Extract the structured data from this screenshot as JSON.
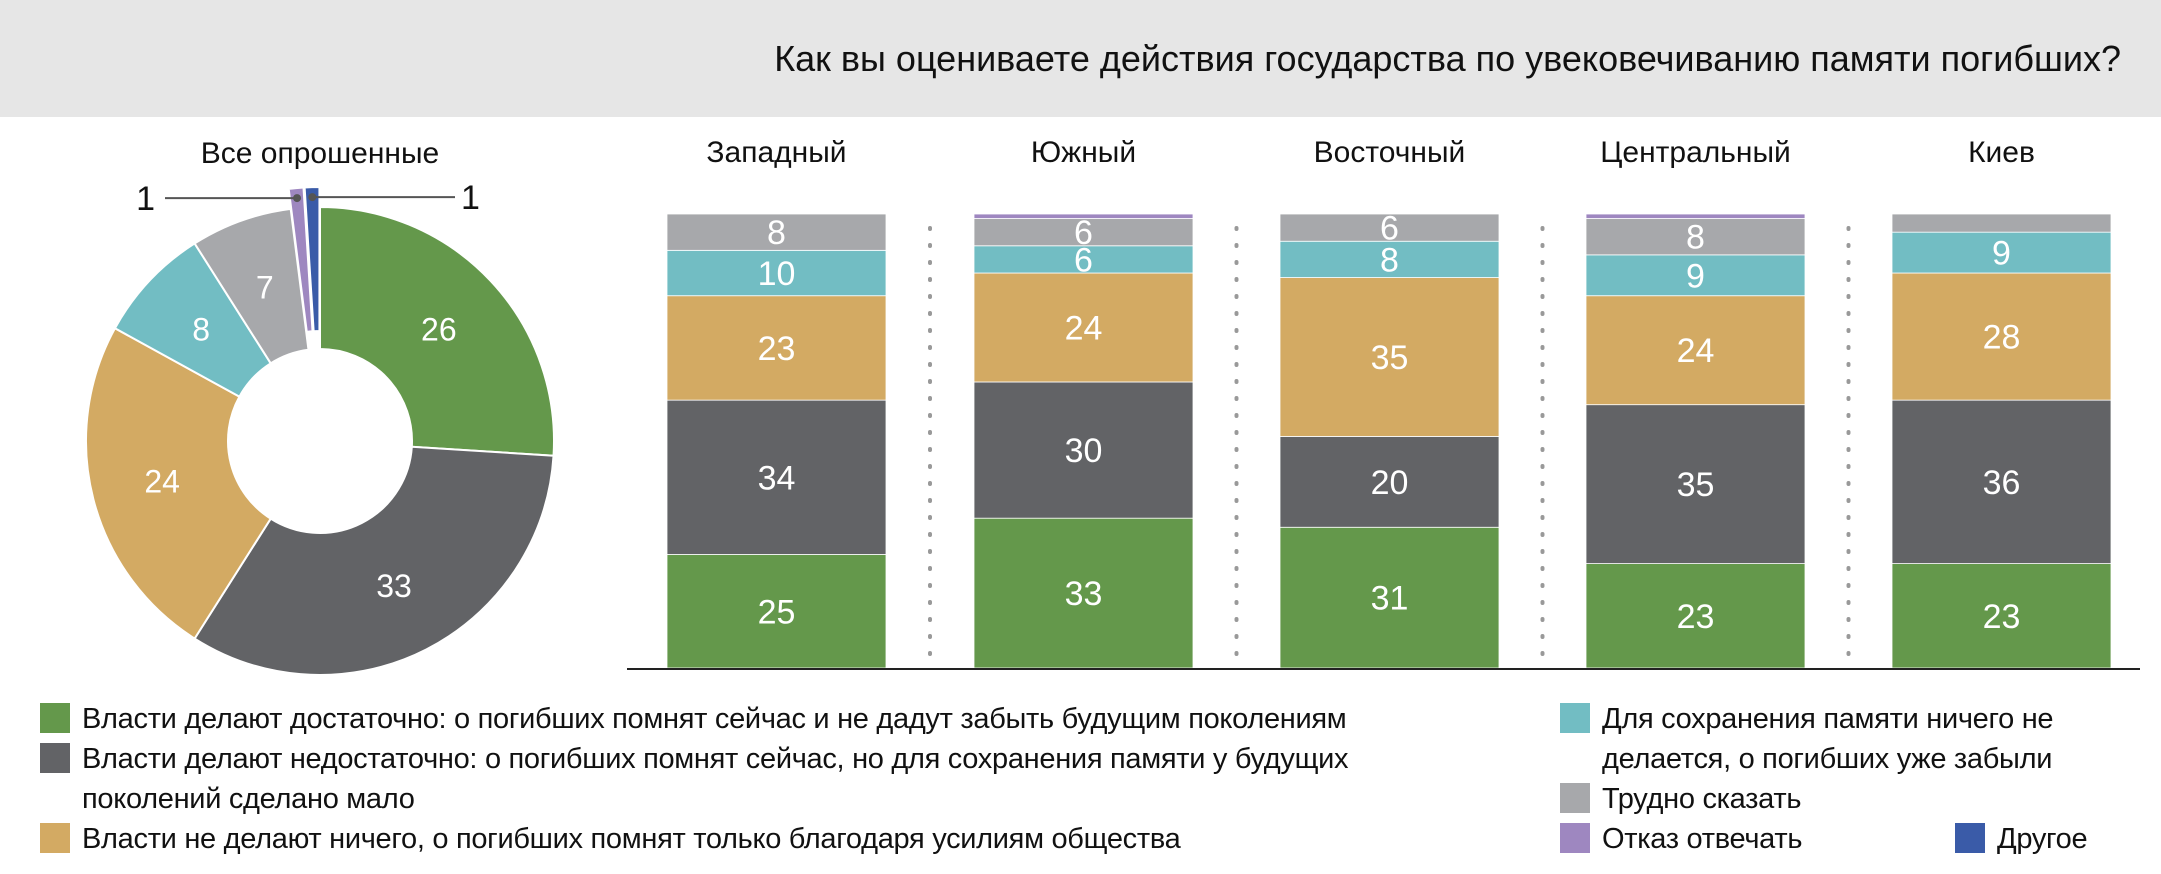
{
  "title": "Как вы оцениваете действия государства по увековечиванию памяти погибших?",
  "chart_data": {
    "type": "bar",
    "title": "Как вы оцениваете действия государства по увековечиванию памяти погибших?",
    "series": [
      {
        "name": "Власти делают достаточно: о погибших помнят сейчас и не дадут забыть будущим поколениям",
        "color": "#64984b"
      },
      {
        "name": "Власти делают недостаточно: о погибших помнят сейчас, но для сохранения памяти у будущих поколений сделано мало",
        "color": "#626366"
      },
      {
        "name": "Власти не делают ничего, о погибших помнят только благодаря усилиям общества",
        "color": "#d3aa63"
      },
      {
        "name": "Для сохранения памяти ничего не делается, о погибших уже забыли",
        "color": "#72bdc3"
      },
      {
        "name": "Трудно сказать",
        "color": "#a7a8ab"
      },
      {
        "name": "Отказ отвечать",
        "color": "#9e87c0"
      },
      {
        "name": "Другое",
        "color": "#3a5ba8"
      }
    ],
    "donut": {
      "label": "Все опрошенные",
      "values": [
        26,
        33,
        24,
        8,
        7,
        1,
        1
      ],
      "labels": [
        "26",
        "33",
        "24",
        "8",
        "7",
        "1",
        "1"
      ]
    },
    "categories": [
      "Западный",
      "Южный",
      "Восточный",
      "Центральный",
      "Киев"
    ],
    "stacks": [
      {
        "values": [
          25,
          34,
          23,
          10,
          8,
          0,
          0
        ],
        "labels": [
          "25",
          "34",
          "23",
          "10",
          "8",
          "",
          ""
        ]
      },
      {
        "values": [
          33,
          30,
          24,
          6,
          6,
          1,
          0
        ],
        "labels": [
          "33",
          "30",
          "24",
          "6",
          "6",
          "",
          ""
        ]
      },
      {
        "values": [
          31,
          20,
          35,
          8,
          6,
          0,
          0
        ],
        "labels": [
          "31",
          "20",
          "35",
          "8",
          "6",
          "",
          ""
        ]
      },
      {
        "values": [
          23,
          35,
          24,
          9,
          8,
          1,
          0
        ],
        "labels": [
          "23",
          "35",
          "24",
          "9",
          "8",
          "",
          ""
        ]
      },
      {
        "values": [
          23,
          36,
          28,
          9,
          4,
          0,
          0
        ],
        "labels": [
          "23",
          "36",
          "28",
          "9",
          "",
          "",
          ""
        ]
      }
    ],
    "ylim": [
      0,
      100
    ],
    "legend_position": "bottom"
  },
  "legend": [
    "Власти делают достаточно: о погибших помнят сейчас и не дадут забыть будущим поколениям",
    "Власти делают недостаточно: о погибших помнят сейчас, но для сохранения памяти у будущих",
    "поколений сделано мало",
    "Власти не делают ничего, о погибших помнят только благодаря усилиям общества",
    "Для сохранения памяти ничего не",
    "делается, о погибших уже забыли",
    "Трудно сказать",
    "Отказ отвечать",
    "Другое"
  ]
}
